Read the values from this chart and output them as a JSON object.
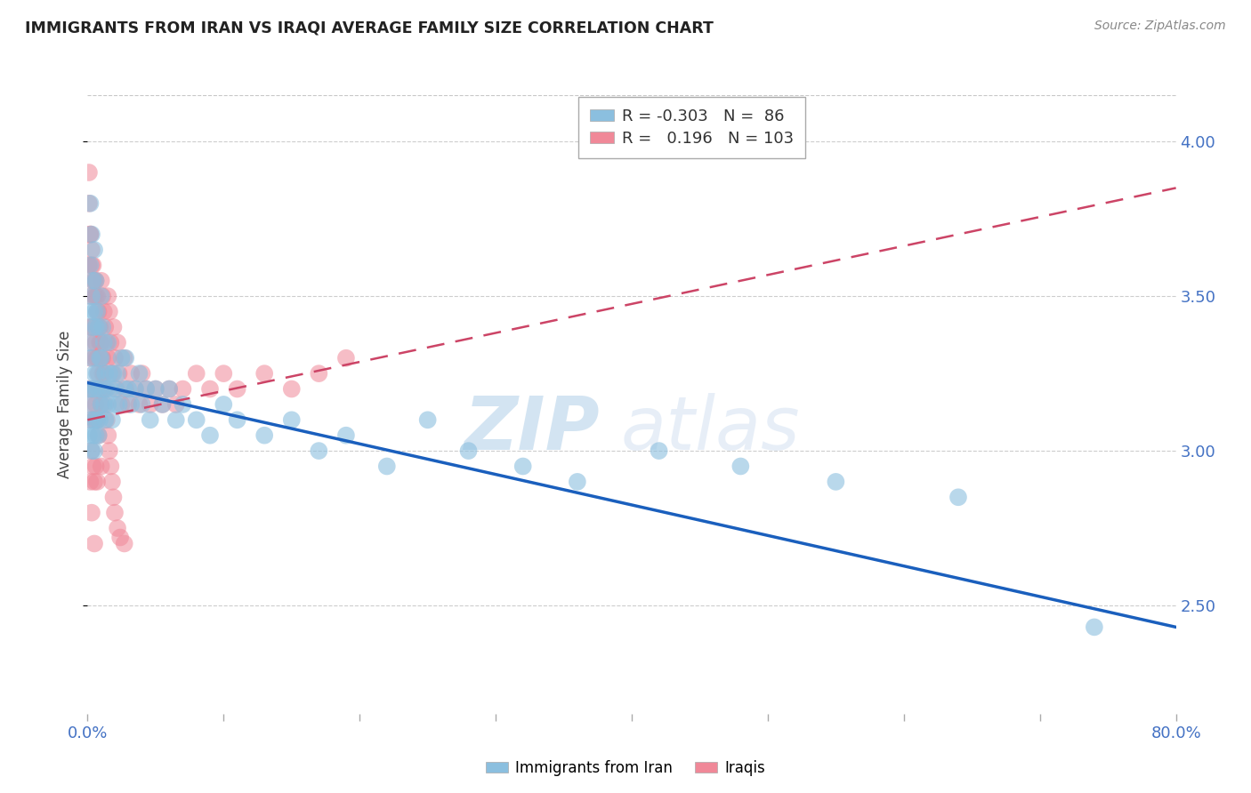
{
  "title": "IMMIGRANTS FROM IRAN VS IRAQI AVERAGE FAMILY SIZE CORRELATION CHART",
  "source": "Source: ZipAtlas.com",
  "ylabel": "Average Family Size",
  "xlim": [
    0.0,
    0.8
  ],
  "ylim": [
    2.15,
    4.15
  ],
  "yticks": [
    2.5,
    3.0,
    3.5,
    4.0
  ],
  "xticks": [
    0.0,
    0.1,
    0.2,
    0.3,
    0.4,
    0.5,
    0.6,
    0.7,
    0.8
  ],
  "iran_color": "#8bbfdf",
  "iraq_color": "#f08898",
  "trend_iran_color": "#1a5fbd",
  "trend_iraq_color": "#cc4466",
  "legend_R_iran": "-0.303",
  "legend_N_iran": "86",
  "legend_R_iraq": "0.196",
  "legend_N_iraq": "103",
  "watermark_zip": "ZIP",
  "watermark_atlas": "atlas",
  "trend_iran_x0": 0.0,
  "trend_iran_y0": 3.22,
  "trend_iran_x1": 0.8,
  "trend_iran_y1": 2.43,
  "trend_iraq_x0": 0.0,
  "trend_iraq_y0": 3.1,
  "trend_iraq_x1": 0.8,
  "trend_iraq_y1": 3.85,
  "iran_x": [
    0.001,
    0.001,
    0.001,
    0.002,
    0.002,
    0.002,
    0.002,
    0.003,
    0.003,
    0.003,
    0.003,
    0.003,
    0.004,
    0.004,
    0.004,
    0.004,
    0.005,
    0.005,
    0.005,
    0.005,
    0.005,
    0.006,
    0.006,
    0.006,
    0.006,
    0.007,
    0.007,
    0.007,
    0.008,
    0.008,
    0.008,
    0.009,
    0.009,
    0.01,
    0.01,
    0.01,
    0.011,
    0.011,
    0.012,
    0.012,
    0.013,
    0.013,
    0.014,
    0.015,
    0.015,
    0.016,
    0.017,
    0.018,
    0.019,
    0.02,
    0.021,
    0.022,
    0.023,
    0.025,
    0.027,
    0.028,
    0.03,
    0.032,
    0.035,
    0.038,
    0.04,
    0.043,
    0.046,
    0.05,
    0.055,
    0.06,
    0.065,
    0.07,
    0.08,
    0.09,
    0.1,
    0.11,
    0.13,
    0.15,
    0.17,
    0.19,
    0.22,
    0.25,
    0.28,
    0.32,
    0.36,
    0.42,
    0.48,
    0.55,
    0.64,
    0.74
  ],
  "iran_y": [
    3.2,
    3.35,
    3.05,
    3.6,
    3.8,
    3.45,
    3.15,
    3.7,
    3.5,
    3.3,
    3.1,
    3.0,
    3.55,
    3.4,
    3.2,
    3.05,
    3.65,
    3.45,
    3.25,
    3.1,
    3.0,
    3.55,
    3.4,
    3.2,
    3.05,
    3.45,
    3.25,
    3.1,
    3.4,
    3.2,
    3.05,
    3.3,
    3.1,
    3.5,
    3.3,
    3.15,
    3.4,
    3.2,
    3.35,
    3.15,
    3.25,
    3.1,
    3.2,
    3.35,
    3.15,
    3.25,
    3.2,
    3.1,
    3.25,
    3.2,
    3.15,
    3.25,
    3.15,
    3.3,
    3.2,
    3.3,
    3.2,
    3.15,
    3.2,
    3.25,
    3.15,
    3.2,
    3.1,
    3.2,
    3.15,
    3.2,
    3.1,
    3.15,
    3.1,
    3.05,
    3.15,
    3.1,
    3.05,
    3.1,
    3.0,
    3.05,
    2.95,
    3.1,
    3.0,
    2.95,
    2.9,
    3.0,
    2.95,
    2.9,
    2.85,
    2.43
  ],
  "iraq_x": [
    0.001,
    0.001,
    0.001,
    0.001,
    0.002,
    0.002,
    0.002,
    0.002,
    0.002,
    0.003,
    0.003,
    0.003,
    0.003,
    0.003,
    0.004,
    0.004,
    0.004,
    0.004,
    0.005,
    0.005,
    0.005,
    0.005,
    0.005,
    0.006,
    0.006,
    0.006,
    0.006,
    0.007,
    0.007,
    0.007,
    0.007,
    0.008,
    0.008,
    0.008,
    0.009,
    0.009,
    0.01,
    0.01,
    0.01,
    0.01,
    0.011,
    0.011,
    0.012,
    0.012,
    0.013,
    0.013,
    0.014,
    0.015,
    0.015,
    0.016,
    0.017,
    0.018,
    0.019,
    0.02,
    0.021,
    0.022,
    0.023,
    0.025,
    0.027,
    0.028,
    0.03,
    0.032,
    0.035,
    0.038,
    0.04,
    0.043,
    0.046,
    0.05,
    0.055,
    0.06,
    0.065,
    0.07,
    0.08,
    0.09,
    0.1,
    0.11,
    0.13,
    0.15,
    0.17,
    0.19,
    0.001,
    0.002,
    0.003,
    0.004,
    0.005,
    0.006,
    0.007,
    0.008,
    0.009,
    0.01,
    0.011,
    0.012,
    0.013,
    0.014,
    0.015,
    0.016,
    0.017,
    0.018,
    0.019,
    0.02,
    0.022,
    0.024,
    0.027
  ],
  "iraq_y": [
    3.9,
    3.6,
    3.4,
    3.2,
    3.7,
    3.5,
    3.3,
    3.1,
    2.9,
    3.6,
    3.4,
    3.2,
    3.0,
    2.8,
    3.55,
    3.35,
    3.15,
    2.95,
    3.5,
    3.3,
    3.1,
    2.9,
    2.7,
    3.55,
    3.35,
    3.15,
    2.95,
    3.5,
    3.3,
    3.1,
    2.9,
    3.45,
    3.25,
    3.05,
    3.4,
    3.2,
    3.55,
    3.35,
    3.15,
    2.95,
    3.5,
    3.3,
    3.45,
    3.25,
    3.4,
    3.2,
    3.35,
    3.5,
    3.3,
    3.45,
    3.35,
    3.25,
    3.4,
    3.3,
    3.2,
    3.35,
    3.25,
    3.15,
    3.3,
    3.2,
    3.15,
    3.25,
    3.2,
    3.15,
    3.25,
    3.2,
    3.15,
    3.2,
    3.15,
    3.2,
    3.15,
    3.2,
    3.25,
    3.2,
    3.25,
    3.2,
    3.25,
    3.2,
    3.25,
    3.3,
    3.8,
    3.7,
    3.65,
    3.6,
    3.55,
    3.5,
    3.45,
    3.4,
    3.35,
    3.3,
    3.25,
    3.2,
    3.15,
    3.1,
    3.05,
    3.0,
    2.95,
    2.9,
    2.85,
    2.8,
    2.75,
    2.72,
    2.7
  ]
}
